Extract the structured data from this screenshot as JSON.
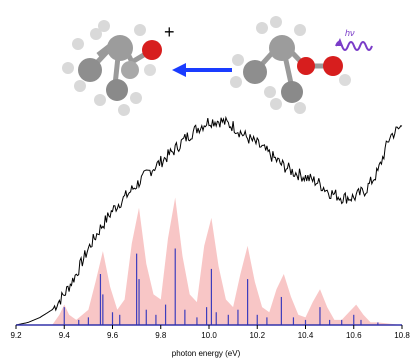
{
  "chart_data": {
    "type": "line",
    "title": "",
    "xlabel": "photon energy (eV)",
    "ylabel": "",
    "xlim": [
      9.2,
      10.8
    ],
    "ylim": [
      0,
      1.0
    ],
    "xticks": [
      "9.2",
      "9.4",
      "9.6",
      "9.8",
      "10.0",
      "10.2",
      "10.4",
      "10.6",
      "10.8"
    ],
    "grid": false,
    "legend": "none",
    "annotation": {
      "radical_cation_label": "+",
      "photon_label": "hν"
    },
    "series": [
      {
        "role": "measured spectrum",
        "color": "#000000",
        "x": [
          9.2,
          9.25,
          9.3,
          9.35,
          9.4,
          9.45,
          9.5,
          9.55,
          9.6,
          9.65,
          9.7,
          9.75,
          9.8,
          9.85,
          9.9,
          9.95,
          10.0,
          10.05,
          10.1,
          10.15,
          10.2,
          10.25,
          10.3,
          10.35,
          10.4,
          10.45,
          10.5,
          10.55,
          10.6,
          10.65,
          10.7,
          10.75,
          10.8
        ],
        "y": [
          0.0,
          0.01,
          0.03,
          0.06,
          0.12,
          0.2,
          0.3,
          0.38,
          0.45,
          0.5,
          0.55,
          0.6,
          0.64,
          0.68,
          0.73,
          0.77,
          0.8,
          0.8,
          0.78,
          0.74,
          0.71,
          0.67,
          0.63,
          0.6,
          0.58,
          0.56,
          0.52,
          0.5,
          0.5,
          0.53,
          0.6,
          0.74,
          0.78
        ]
      },
      {
        "role": "simulated envelope",
        "color": "#f6b3b3",
        "x": [
          9.2,
          9.35,
          9.38,
          9.4,
          9.42,
          9.45,
          9.5,
          9.53,
          9.56,
          9.59,
          9.62,
          9.65,
          9.68,
          9.71,
          9.74,
          9.77,
          9.8,
          9.83,
          9.86,
          9.89,
          9.92,
          9.95,
          9.98,
          10.01,
          10.04,
          10.07,
          10.1,
          10.13,
          10.16,
          10.19,
          10.22,
          10.25,
          10.28,
          10.31,
          10.34,
          10.37,
          10.4,
          10.43,
          10.46,
          10.49,
          10.52,
          10.55,
          10.58,
          10.61,
          10.64,
          10.67,
          10.7,
          10.8
        ],
        "y": [
          0.0,
          0.0,
          0.04,
          0.08,
          0.04,
          0.02,
          0.06,
          0.17,
          0.29,
          0.15,
          0.06,
          0.1,
          0.32,
          0.46,
          0.24,
          0.12,
          0.1,
          0.34,
          0.5,
          0.27,
          0.12,
          0.09,
          0.31,
          0.42,
          0.23,
          0.1,
          0.07,
          0.2,
          0.31,
          0.17,
          0.07,
          0.05,
          0.14,
          0.2,
          0.11,
          0.04,
          0.03,
          0.09,
          0.14,
          0.07,
          0.02,
          0.02,
          0.05,
          0.08,
          0.04,
          0.01,
          0.01,
          0.0
        ]
      },
      {
        "role": "vibronic stick transitions",
        "type": "bar",
        "color": "#3d3dbd",
        "x": [
          9.4,
          9.46,
          9.5,
          9.55,
          9.56,
          9.6,
          9.63,
          9.7,
          9.71,
          9.74,
          9.78,
          9.82,
          9.86,
          9.9,
          9.95,
          9.99,
          10.01,
          10.03,
          10.08,
          10.12,
          10.16,
          10.2,
          10.24,
          10.3,
          10.35,
          10.4,
          10.46,
          10.5,
          10.55,
          10.6,
          10.63,
          10.7
        ],
        "y": [
          0.07,
          0.02,
          0.03,
          0.2,
          0.12,
          0.05,
          0.04,
          0.28,
          0.18,
          0.06,
          0.04,
          0.08,
          0.3,
          0.06,
          0.03,
          0.07,
          0.22,
          0.05,
          0.04,
          0.06,
          0.18,
          0.04,
          0.03,
          0.11,
          0.03,
          0.02,
          0.07,
          0.02,
          0.02,
          0.04,
          0.02,
          0.01
        ]
      }
    ]
  }
}
